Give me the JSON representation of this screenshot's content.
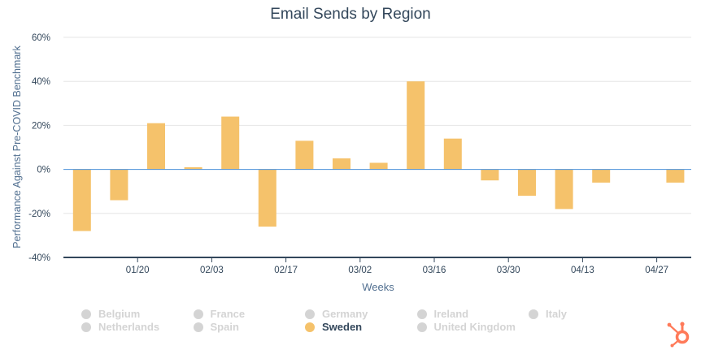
{
  "chart_data": {
    "type": "bar",
    "title": "Email Sends by Region",
    "xlabel": "Weeks",
    "ylabel": "Performance Against Pre-COVID Benchmark",
    "ylim": [
      -40,
      60
    ],
    "y_ticks": [
      "60%",
      "40%",
      "20%",
      "0%",
      "-20%",
      "-40%"
    ],
    "y_tick_values": [
      60,
      40,
      20,
      0,
      -20,
      -40
    ],
    "x_tick_labels": [
      {
        "label": "01/20",
        "index": 1
      },
      {
        "label": "02/03",
        "index": 3
      },
      {
        "label": "02/17",
        "index": 5
      },
      {
        "label": "03/02",
        "index": 7
      },
      {
        "label": "03/16",
        "index": 9
      },
      {
        "label": "03/30",
        "index": 11
      },
      {
        "label": "04/13",
        "index": 13
      },
      {
        "label": "04/27",
        "index": 15
      }
    ],
    "series": [
      {
        "name": "Sweden",
        "color": "#f5c26b",
        "values": [
          -28,
          -14,
          21,
          1,
          24,
          -26,
          13,
          5,
          3,
          40,
          14,
          -5,
          -12,
          -18,
          -6,
          null,
          -6
        ]
      }
    ],
    "grid": true,
    "legend_position": "bottom"
  },
  "legend": {
    "items": [
      {
        "label": "Belgium",
        "active": false
      },
      {
        "label": "France",
        "active": false
      },
      {
        "label": "Germany",
        "active": false
      },
      {
        "label": "Ireland",
        "active": false
      },
      {
        "label": "Italy",
        "active": false
      },
      {
        "label": "Netherlands",
        "active": false
      },
      {
        "label": "Spain",
        "active": false
      },
      {
        "label": "Sweden",
        "active": true
      },
      {
        "label": "United Kingdom",
        "active": false
      }
    ]
  },
  "colors": {
    "bar": "#f5c26b",
    "zero_line": "#4a90d9",
    "grid": "#e6e6e6",
    "axis": "#33475b",
    "inactive": "#d4d4d4",
    "logo": "#ff7a59"
  },
  "branding": {
    "logo_icon": "hubspot-sprocket-icon"
  }
}
